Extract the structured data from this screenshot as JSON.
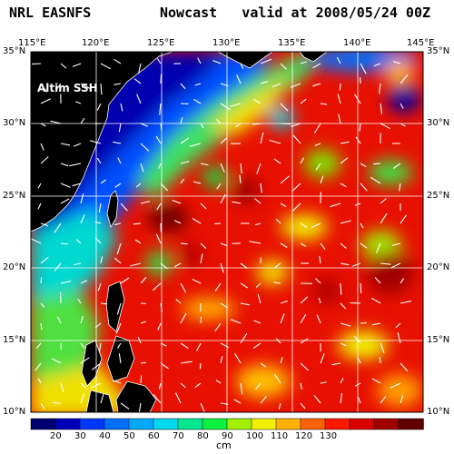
{
  "header": {
    "left": "NRL EASNFS",
    "right": "Nowcast   valid at 2008/05/24 00Z"
  },
  "map": {
    "overlay_label": "Altim SSH",
    "lon_ticks": [
      "115°E",
      "120°E",
      "125°E",
      "130°E",
      "135°E",
      "140°E",
      "145°E"
    ],
    "lat_ticks": [
      "35°N",
      "30°N",
      "25°N",
      "20°N",
      "15°N",
      "10°N"
    ],
    "lon_range": [
      115,
      145
    ],
    "lat_range": [
      10,
      35
    ],
    "grid_color": "#ffffff",
    "land_color": "#000000",
    "coastline_color": "#ffffff",
    "arrow_color": "#ffffff"
  },
  "colorbar": {
    "tick_labels": [
      "20",
      "30",
      "40",
      "50",
      "60",
      "70",
      "80",
      "90",
      "100",
      "110",
      "120",
      "130"
    ],
    "units": "cm",
    "colors": [
      "#000070",
      "#0000b8",
      "#0038ff",
      "#0070ff",
      "#00a8ff",
      "#00d8f0",
      "#00e890",
      "#10f040",
      "#a0f000",
      "#f0f000",
      "#ffb000",
      "#ff6000",
      "#ff1800",
      "#d80000",
      "#a00000",
      "#600000"
    ]
  }
}
